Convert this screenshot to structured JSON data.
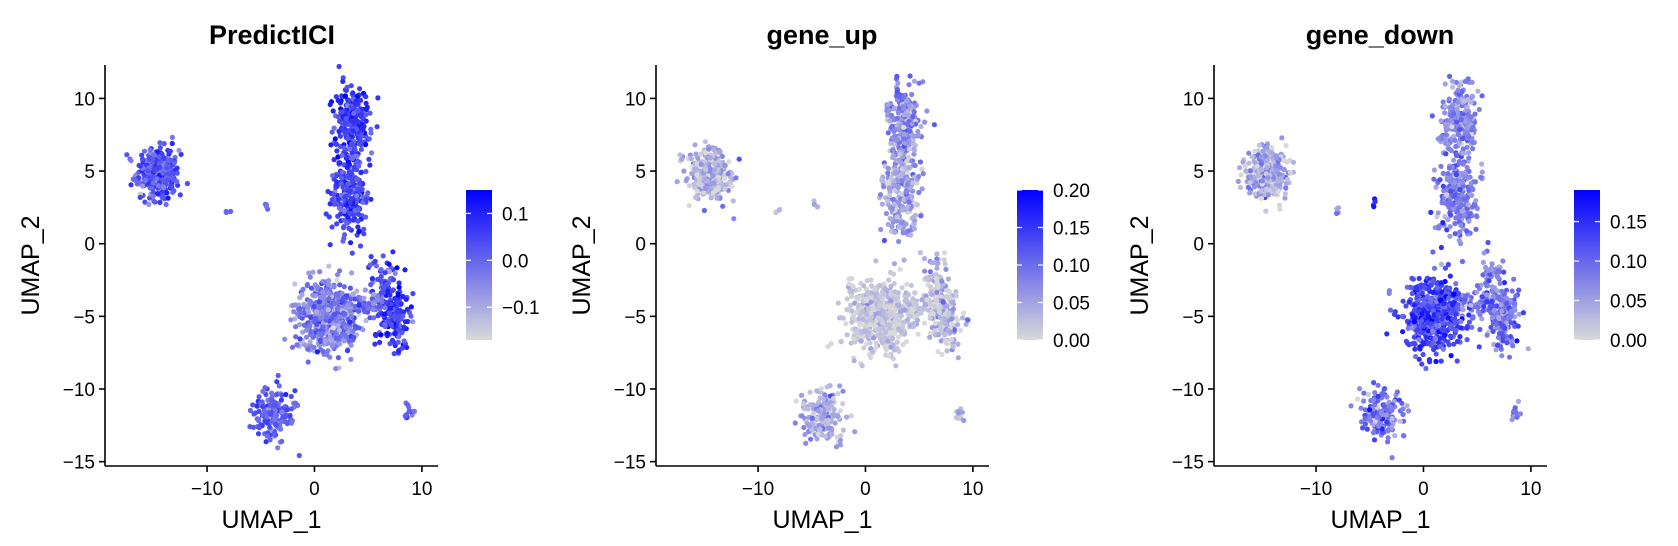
{
  "chart_data": [
    {
      "type": "scatter",
      "title": "PredictICI",
      "xlabel": "UMAP_1",
      "ylabel": "UMAP_2",
      "xlim": [
        -19.5,
        11.5
      ],
      "ylim": [
        -15.3,
        12.3
      ],
      "x_ticks": [
        -10,
        0,
        10
      ],
      "x_tick_labels": [
        "−10",
        "0",
        "10"
      ],
      "y_ticks": [
        -15,
        -10,
        -5,
        0,
        5,
        10
      ],
      "y_tick_labels": [
        "−15",
        "−10",
        "−5",
        "0",
        "5",
        "10"
      ],
      "legend": {
        "position": "right",
        "min": -0.17,
        "max": 0.15,
        "ticks": [
          -0.1,
          0.0,
          0.1
        ],
        "tick_labels": [
          "−0.1",
          "0.0",
          "0.1"
        ]
      },
      "colors": {
        "low": "#d9d9d9",
        "high": "#0000ff"
      },
      "clusters": [
        {
          "x": -14.6,
          "y": 4.8,
          "sx": 1.0,
          "sy": 0.9,
          "n": 320,
          "mean": 0.02,
          "sd": 0.04
        },
        {
          "x": 3.5,
          "y": 8.3,
          "sx": 0.8,
          "sy": 1.3,
          "n": 260,
          "mean": 0.06,
          "sd": 0.04
        },
        {
          "x": 3.3,
          "y": 3.5,
          "sx": 0.9,
          "sy": 1.5,
          "n": 240,
          "mean": 0.05,
          "sd": 0.04
        },
        {
          "x": 6.5,
          "y": -2.5,
          "sx": 0.6,
          "sy": 1.0,
          "n": 60,
          "mean": 0.03,
          "sd": 0.04
        },
        {
          "x": 1.2,
          "y": -5.0,
          "sx": 1.5,
          "sy": 1.2,
          "n": 520,
          "mean": -0.04,
          "sd": 0.05
        },
        {
          "x": 7.5,
          "y": -5.0,
          "sx": 0.7,
          "sy": 1.1,
          "n": 160,
          "mean": 0.06,
          "sd": 0.04
        },
        {
          "x": 4.8,
          "y": -4.2,
          "sx": 1.2,
          "sy": 0.4,
          "n": 60,
          "mean": -0.02,
          "sd": 0.04
        },
        {
          "x": -3.8,
          "y": -11.8,
          "sx": 1.0,
          "sy": 0.9,
          "n": 170,
          "mean": 0.01,
          "sd": 0.04
        },
        {
          "x": 8.7,
          "y": -11.7,
          "sx": 0.25,
          "sy": 0.3,
          "n": 12,
          "mean": 0.0,
          "sd": 0.03
        },
        {
          "x": -8.0,
          "y": 2.3,
          "sx": 0.15,
          "sy": 0.15,
          "n": 4,
          "mean": 0.0,
          "sd": 0.03
        },
        {
          "x": -4.6,
          "y": 2.7,
          "sx": 0.15,
          "sy": 0.15,
          "n": 4,
          "mean": 0.0,
          "sd": 0.03
        }
      ]
    },
    {
      "type": "scatter",
      "title": "gene_up",
      "xlabel": "UMAP_1",
      "ylabel": "UMAP_2",
      "xlim": [
        -19.5,
        11.5
      ],
      "ylim": [
        -15.3,
        12.3
      ],
      "x_ticks": [
        -10,
        0,
        10
      ],
      "x_tick_labels": [
        "−10",
        "0",
        "10"
      ],
      "y_ticks": [
        -15,
        -10,
        -5,
        0,
        5,
        10
      ],
      "y_tick_labels": [
        "−15",
        "−10",
        "−5",
        "0",
        "5",
        "10"
      ],
      "legend": {
        "position": "right",
        "min": 0.0,
        "max": 0.2,
        "ticks": [
          0.0,
          0.05,
          0.1,
          0.15,
          0.2
        ],
        "tick_labels": [
          "0.00",
          "0.05",
          "0.10",
          "0.15",
          "0.20"
        ]
      },
      "colors": {
        "low": "#d9d9d9",
        "high": "#0000ff"
      },
      "clusters": [
        {
          "x": -14.6,
          "y": 4.8,
          "sx": 1.0,
          "sy": 0.9,
          "n": 320,
          "mean": 0.04,
          "sd": 0.03
        },
        {
          "x": 3.5,
          "y": 8.3,
          "sx": 0.8,
          "sy": 1.3,
          "n": 260,
          "mean": 0.07,
          "sd": 0.03
        },
        {
          "x": 3.3,
          "y": 3.5,
          "sx": 0.9,
          "sy": 1.5,
          "n": 240,
          "mean": 0.05,
          "sd": 0.03
        },
        {
          "x": 6.5,
          "y": -2.5,
          "sx": 0.6,
          "sy": 1.0,
          "n": 60,
          "mean": 0.03,
          "sd": 0.03
        },
        {
          "x": 1.2,
          "y": -5.0,
          "sx": 1.5,
          "sy": 1.2,
          "n": 520,
          "mean": 0.015,
          "sd": 0.02
        },
        {
          "x": 7.5,
          "y": -5.0,
          "sx": 0.7,
          "sy": 1.1,
          "n": 160,
          "mean": 0.03,
          "sd": 0.03
        },
        {
          "x": 4.8,
          "y": -4.2,
          "sx": 1.2,
          "sy": 0.4,
          "n": 60,
          "mean": 0.02,
          "sd": 0.02
        },
        {
          "x": -3.8,
          "y": -11.8,
          "sx": 1.0,
          "sy": 0.9,
          "n": 170,
          "mean": 0.04,
          "sd": 0.03
        },
        {
          "x": 8.7,
          "y": -11.7,
          "sx": 0.25,
          "sy": 0.3,
          "n": 12,
          "mean": 0.03,
          "sd": 0.02
        },
        {
          "x": -8.0,
          "y": 2.3,
          "sx": 0.15,
          "sy": 0.15,
          "n": 4,
          "mean": 0.03,
          "sd": 0.02
        },
        {
          "x": -4.6,
          "y": 2.7,
          "sx": 0.15,
          "sy": 0.15,
          "n": 4,
          "mean": 0.03,
          "sd": 0.02
        }
      ]
    },
    {
      "type": "scatter",
      "title": "gene_down",
      "xlabel": "UMAP_1",
      "ylabel": "UMAP_2",
      "xlim": [
        -19.5,
        11.5
      ],
      "ylim": [
        -15.3,
        12.3
      ],
      "x_ticks": [
        -10,
        0,
        10
      ],
      "x_tick_labels": [
        "−10",
        "0",
        "10"
      ],
      "y_ticks": [
        -15,
        -10,
        -5,
        0,
        5,
        10
      ],
      "y_tick_labels": [
        "−15",
        "−10",
        "−5",
        "0",
        "5",
        "10"
      ],
      "legend": {
        "position": "right",
        "min": 0.0,
        "max": 0.19,
        "ticks": [
          0.0,
          0.05,
          0.1,
          0.15
        ],
        "tick_labels": [
          "0.00",
          "0.05",
          "0.10",
          "0.15"
        ]
      },
      "colors": {
        "low": "#d9d9d9",
        "high": "#0000ff"
      },
      "clusters": [
        {
          "x": -14.6,
          "y": 4.8,
          "sx": 1.0,
          "sy": 0.9,
          "n": 320,
          "mean": 0.04,
          "sd": 0.03
        },
        {
          "x": 3.5,
          "y": 8.3,
          "sx": 0.8,
          "sy": 1.3,
          "n": 260,
          "mean": 0.07,
          "sd": 0.03
        },
        {
          "x": 3.3,
          "y": 3.5,
          "sx": 0.9,
          "sy": 1.5,
          "n": 240,
          "mean": 0.08,
          "sd": 0.03
        },
        {
          "x": 6.5,
          "y": -2.5,
          "sx": 0.6,
          "sy": 1.0,
          "n": 60,
          "mean": 0.08,
          "sd": 0.03
        },
        {
          "x": 1.2,
          "y": -5.0,
          "sx": 1.5,
          "sy": 1.2,
          "n": 520,
          "mean": 0.13,
          "sd": 0.03
        },
        {
          "x": 7.5,
          "y": -5.0,
          "sx": 0.7,
          "sy": 1.1,
          "n": 160,
          "mean": 0.09,
          "sd": 0.03
        },
        {
          "x": 4.8,
          "y": -4.2,
          "sx": 1.2,
          "sy": 0.4,
          "n": 60,
          "mean": 0.09,
          "sd": 0.03
        },
        {
          "x": -3.8,
          "y": -11.8,
          "sx": 1.0,
          "sy": 0.9,
          "n": 170,
          "mean": 0.08,
          "sd": 0.03
        },
        {
          "x": 8.7,
          "y": -11.7,
          "sx": 0.25,
          "sy": 0.3,
          "n": 12,
          "mean": 0.08,
          "sd": 0.03
        },
        {
          "x": -8.0,
          "y": 2.3,
          "sx": 0.15,
          "sy": 0.15,
          "n": 4,
          "mean": 0.08,
          "sd": 0.03
        },
        {
          "x": -4.6,
          "y": 2.7,
          "sx": 0.15,
          "sy": 0.15,
          "n": 4,
          "mean": 0.17,
          "sd": 0.02
        }
      ]
    }
  ]
}
